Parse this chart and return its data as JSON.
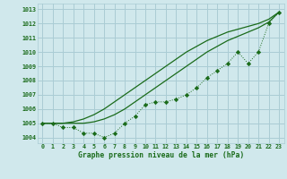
{
  "title": "Graphe pression niveau de la mer (hPa)",
  "background_color": "#d0e8ec",
  "grid_color": "#aaccd4",
  "line_color": "#1a6b1a",
  "x_ticks": [
    0,
    1,
    2,
    3,
    4,
    5,
    6,
    7,
    8,
    9,
    10,
    11,
    12,
    13,
    14,
    15,
    16,
    17,
    18,
    19,
    20,
    21,
    22,
    23
  ],
  "y_ticks": [
    1004,
    1005,
    1006,
    1007,
    1008,
    1009,
    1010,
    1011,
    1012,
    1013
  ],
  "ylim": [
    1003.6,
    1013.4
  ],
  "xlim": [
    -0.5,
    23.5
  ],
  "series_dot": [
    1005.0,
    1005.0,
    1004.7,
    1004.7,
    1004.3,
    1004.3,
    1004.0,
    1004.3,
    1005.0,
    1005.5,
    1006.3,
    1006.5,
    1006.5,
    1006.7,
    1007.0,
    1007.5,
    1008.2,
    1008.7,
    1009.2,
    1010.0,
    1009.2,
    1010.0,
    1012.0,
    1012.8
  ],
  "series_line1": [
    1005.0,
    1005.0,
    1005.0,
    1005.1,
    1005.3,
    1005.6,
    1006.0,
    1006.5,
    1007.0,
    1007.5,
    1008.0,
    1008.5,
    1009.0,
    1009.5,
    1010.0,
    1010.4,
    1010.8,
    1011.1,
    1011.4,
    1011.6,
    1011.8,
    1012.0,
    1012.3,
    1012.8
  ],
  "series_line2": [
    1005.0,
    1005.0,
    1005.0,
    1005.0,
    1005.0,
    1005.1,
    1005.3,
    1005.6,
    1006.0,
    1006.5,
    1007.0,
    1007.5,
    1008.0,
    1008.5,
    1009.0,
    1009.5,
    1010.0,
    1010.4,
    1010.8,
    1011.1,
    1011.4,
    1011.7,
    1012.1,
    1012.8
  ]
}
